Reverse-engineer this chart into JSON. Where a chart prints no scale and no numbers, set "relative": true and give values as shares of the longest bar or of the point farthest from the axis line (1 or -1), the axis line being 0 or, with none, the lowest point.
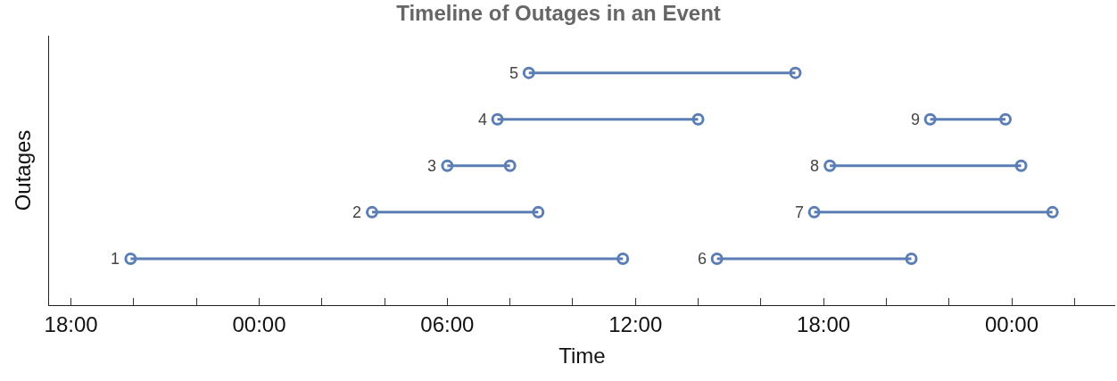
{
  "chart_data": {
    "type": "line",
    "title": "Timeline of Outages in an Event",
    "xlabel": "Time",
    "ylabel": "Outages",
    "relative": true,
    "marker": "circle",
    "line_style": "solid",
    "grid": false,
    "xlim": [
      "2000-01-01T17:18",
      "2000-01-03T03:18"
    ],
    "xticks": [
      {
        "value": "2000-01-01T18:00",
        "label": "18:00"
      },
      {
        "value": "2000-01-01T20:00",
        "label": null
      },
      {
        "value": "2000-01-01T22:00",
        "label": null
      },
      {
        "value": "2000-01-02T00:00",
        "label": "00:00"
      },
      {
        "value": "2000-01-02T02:00",
        "label": null
      },
      {
        "value": "2000-01-02T04:00",
        "label": null
      },
      {
        "value": "2000-01-02T06:00",
        "label": "06:00"
      },
      {
        "value": "2000-01-02T08:00",
        "label": null
      },
      {
        "value": "2000-01-02T10:00",
        "label": null
      },
      {
        "value": "2000-01-02T12:00",
        "label": "12:00"
      },
      {
        "value": "2000-01-02T14:00",
        "label": null
      },
      {
        "value": "2000-01-02T16:00",
        "label": null
      },
      {
        "value": "2000-01-02T18:00",
        "label": "18:00"
      },
      {
        "value": "2000-01-02T20:00",
        "label": null
      },
      {
        "value": "2000-01-02T22:00",
        "label": null
      },
      {
        "value": "2000-01-03T00:00",
        "label": "00:00"
      },
      {
        "value": "2000-01-03T02:00",
        "label": null
      }
    ],
    "series": [
      {
        "color": "#5b7fb5",
        "x": [
          "2000-01-01T19:54",
          "2000-01-02T11:36",
          null,
          "2000-01-02T03:36",
          "2000-01-02T08:54",
          null,
          "2000-01-02T06:00",
          "2000-01-02T08:00",
          null,
          "2000-01-02T07:36",
          "2000-01-02T14:00",
          null,
          "2000-01-02T08:36",
          "2000-01-02T17:06",
          null,
          "2000-01-02T14:36",
          "2000-01-02T20:48",
          null,
          "2000-01-02T17:42",
          "2000-01-03T01:18",
          null,
          "2000-01-02T18:12",
          "2000-01-03T00:18",
          null,
          "2000-01-02T21:24",
          "2000-01-02T23:48"
        ],
        "values": [
          0.2,
          0.2,
          null,
          0.4,
          0.4,
          null,
          0.6,
          0.6,
          null,
          0.8,
          0.8,
          null,
          1,
          1,
          null,
          0.2,
          0.2,
          null,
          0.4,
          0.4,
          null,
          0.6,
          0.6,
          null,
          0.8,
          0.8
        ]
      }
    ],
    "annotations": [
      {
        "text": "1",
        "x": "2000-01-01T19:54",
        "y": 0.2
      },
      {
        "text": "2",
        "x": "2000-01-02T03:36",
        "y": 0.4
      },
      {
        "text": "3",
        "x": "2000-01-02T06:00",
        "y": 0.6
      },
      {
        "text": "4",
        "x": "2000-01-02T07:36",
        "y": 0.8
      },
      {
        "text": "5",
        "x": "2000-01-02T08:36",
        "y": 1
      },
      {
        "text": "6",
        "x": "2000-01-02T14:36",
        "y": 0.2
      },
      {
        "text": "7",
        "x": "2000-01-02T17:42",
        "y": 0.4
      },
      {
        "text": "8",
        "x": "2000-01-02T18:12",
        "y": 0.6
      },
      {
        "text": "9",
        "x": "2000-01-02T21:24",
        "y": 0.8
      }
    ]
  }
}
